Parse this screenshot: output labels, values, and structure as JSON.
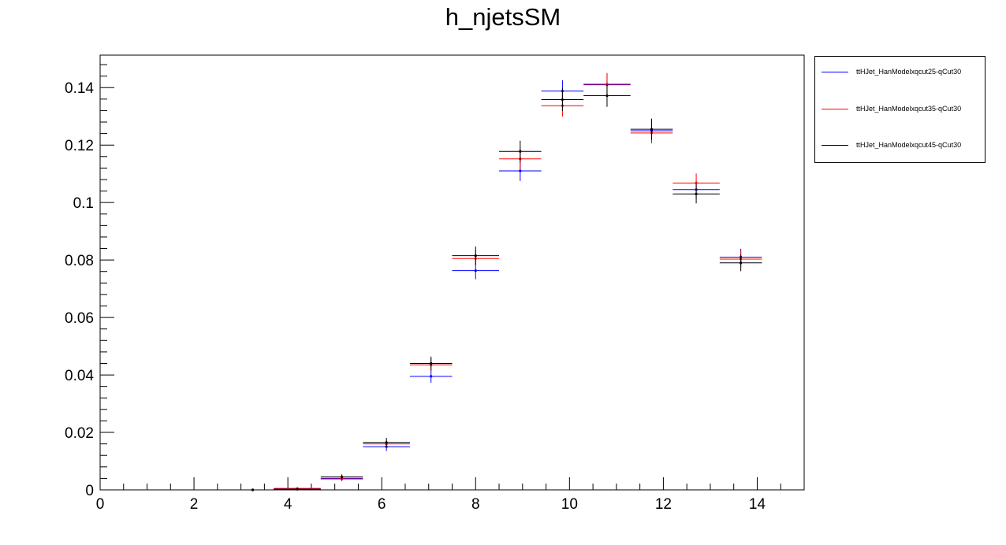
{
  "chart_data": {
    "type": "scatter",
    "title": "h_njetsSM",
    "xlabel": "",
    "ylabel": "",
    "xlim": [
      0,
      15
    ],
    "ylim": [
      0,
      0.1513
    ],
    "x_ticks": [
      "0",
      "2",
      "4",
      "6",
      "8",
      "10",
      "12",
      "14"
    ],
    "y_ticks": [
      "0",
      "0.02",
      "0.04",
      "0.06",
      "0.08",
      "0.1",
      "0.12",
      "0.14"
    ],
    "grid": false,
    "legend_position": "top-right (outside plot)",
    "series": [
      {
        "name": "ttHJet_HanModelxqcut25-qCut30",
        "color": "#0000ff",
        "points": [
          {
            "xlo": 2.8,
            "xhi": 3.7,
            "y": 0.0,
            "err": 0.0
          },
          {
            "xlo": 3.7,
            "xhi": 4.7,
            "y": 0.0003,
            "err": 0.0002
          },
          {
            "xlo": 4.7,
            "xhi": 5.6,
            "y": 0.004,
            "err": 0.0008
          },
          {
            "xlo": 5.6,
            "xhi": 6.6,
            "y": 0.015,
            "err": 0.0015
          },
          {
            "xlo": 6.6,
            "xhi": 7.5,
            "y": 0.0395,
            "err": 0.0022
          },
          {
            "xlo": 7.5,
            "xhi": 8.5,
            "y": 0.0763,
            "err": 0.003
          },
          {
            "xlo": 8.5,
            "xhi": 9.4,
            "y": 0.111,
            "err": 0.0035
          },
          {
            "xlo": 9.4,
            "xhi": 10.3,
            "y": 0.1388,
            "err": 0.0038
          },
          {
            "xlo": 10.3,
            "xhi": 11.3,
            "y": 0.141,
            "err": 0.0038
          },
          {
            "xlo": 11.3,
            "xhi": 12.2,
            "y": 0.125,
            "err": 0.0036
          },
          {
            "xlo": 12.2,
            "xhi": 13.2,
            "y": 0.1045,
            "err": 0.0033
          },
          {
            "xlo": 13.2,
            "xhi": 14.1,
            "y": 0.081,
            "err": 0.0029
          }
        ]
      },
      {
        "name": "ttHJet_HanModelxqcut35-qCut30",
        "color": "#ff0000",
        "points": [
          {
            "xlo": 2.8,
            "xhi": 3.7,
            "y": 0.0,
            "err": 0.0
          },
          {
            "xlo": 3.7,
            "xhi": 4.7,
            "y": 0.0005,
            "err": 0.0002
          },
          {
            "xlo": 4.7,
            "xhi": 5.6,
            "y": 0.0038,
            "err": 0.0008
          },
          {
            "xlo": 5.6,
            "xhi": 6.6,
            "y": 0.016,
            "err": 0.0015
          },
          {
            "xlo": 6.6,
            "xhi": 7.5,
            "y": 0.0435,
            "err": 0.0023
          },
          {
            "xlo": 7.5,
            "xhi": 8.5,
            "y": 0.0805,
            "err": 0.0031
          },
          {
            "xlo": 8.5,
            "xhi": 9.4,
            "y": 0.1152,
            "err": 0.0036
          },
          {
            "xlo": 9.4,
            "xhi": 10.3,
            "y": 0.1337,
            "err": 0.0038
          },
          {
            "xlo": 10.3,
            "xhi": 11.3,
            "y": 0.1412,
            "err": 0.0039
          },
          {
            "xlo": 11.3,
            "xhi": 12.2,
            "y": 0.1242,
            "err": 0.0036
          },
          {
            "xlo": 12.2,
            "xhi": 13.2,
            "y": 0.1068,
            "err": 0.0033
          },
          {
            "xlo": 13.2,
            "xhi": 14.1,
            "y": 0.0803,
            "err": 0.0029
          }
        ]
      },
      {
        "name": "ttHJet_HanModelxqcut45-qCut30",
        "color": "#000000",
        "points": [
          {
            "xlo": 2.8,
            "xhi": 3.7,
            "y": 0.0,
            "err": 0.0
          },
          {
            "xlo": 3.7,
            "xhi": 4.7,
            "y": 0.0002,
            "err": 0.0002
          },
          {
            "xlo": 4.7,
            "xhi": 5.6,
            "y": 0.0045,
            "err": 0.0009
          },
          {
            "xlo": 5.6,
            "xhi": 6.6,
            "y": 0.0165,
            "err": 0.0016
          },
          {
            "xlo": 6.6,
            "xhi": 7.5,
            "y": 0.044,
            "err": 0.0024
          },
          {
            "xlo": 7.5,
            "xhi": 8.5,
            "y": 0.0815,
            "err": 0.0032
          },
          {
            "xlo": 8.5,
            "xhi": 9.4,
            "y": 0.1178,
            "err": 0.0037
          },
          {
            "xlo": 9.4,
            "xhi": 10.3,
            "y": 0.1358,
            "err": 0.0039
          },
          {
            "xlo": 10.3,
            "xhi": 11.3,
            "y": 0.1372,
            "err": 0.0039
          },
          {
            "xlo": 11.3,
            "xhi": 12.2,
            "y": 0.1255,
            "err": 0.0037
          },
          {
            "xlo": 12.2,
            "xhi": 13.2,
            "y": 0.103,
            "err": 0.0033
          },
          {
            "xlo": 13.2,
            "xhi": 14.1,
            "y": 0.079,
            "err": 0.0029
          }
        ]
      }
    ]
  }
}
